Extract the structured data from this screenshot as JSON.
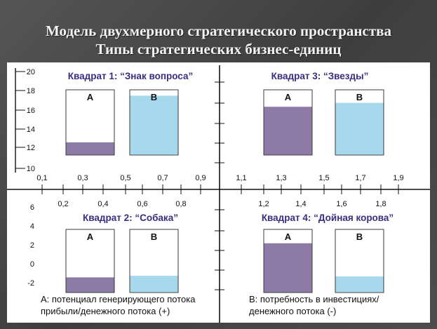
{
  "title": {
    "line1": "Модель двухмерного стратегического пространства",
    "line2": "Типы стратегических бизнес-единиц"
  },
  "quadrants": [
    {
      "id": "q1",
      "label": "Квадрат 1: “Знак вопроса”",
      "bars": [
        {
          "name": "А",
          "fill_fraction": 0.195,
          "color": "#8e7aa6"
        },
        {
          "name": "В",
          "fill_fraction": 0.91,
          "color": "#a7d9ee"
        }
      ]
    },
    {
      "id": "q2",
      "label": "Квадрат 2: “Собака”",
      "bars": [
        {
          "name": "А",
          "fill_fraction": 0.24,
          "color": "#8e7aa6"
        },
        {
          "name": "В",
          "fill_fraction": 0.265,
          "color": "#a7d9ee"
        }
      ]
    },
    {
      "id": "q3",
      "label": "Квадрат 3: “Звезды”",
      "bars": [
        {
          "name": "А",
          "fill_fraction": 0.74,
          "color": "#8e7aa6"
        },
        {
          "name": "В",
          "fill_fraction": 0.8,
          "color": "#a7d9ee"
        }
      ]
    },
    {
      "id": "q4",
      "label": "Квадрат 4: “Дойная корова”",
      "bars": [
        {
          "name": "А",
          "fill_fraction": 0.78,
          "color": "#8e7aa6"
        },
        {
          "name": "В",
          "fill_fraction": 0.255,
          "color": "#a7d9ee"
        }
      ]
    }
  ],
  "y_ticks_top": [
    "20",
    "18",
    "16",
    "14",
    "12",
    "10"
  ],
  "y_ticks_bottom": [
    "6",
    "4",
    "2",
    "0",
    "-2"
  ],
  "x_ticks_upper_left": [
    "0,1",
    "0,3",
    "0,5",
    "0,7",
    "0,9"
  ],
  "x_ticks_lower_left": [
    "0,2",
    "0,4",
    "0,6",
    "0,8"
  ],
  "x_ticks_upper_right": [
    "1,1",
    "1,3",
    "1,5",
    "1,7",
    "1,9"
  ],
  "x_ticks_lower_right": [
    "1,2",
    "1,4",
    "1,6",
    "1,8"
  ],
  "notes": {
    "a_line1": "А: потенциал генерирующего потока",
    "a_line2": "прибыли/денежного потока (+)",
    "b_line1": "В: потребность в инвестициях/",
    "b_line2": "денежного потока (-)"
  }
}
